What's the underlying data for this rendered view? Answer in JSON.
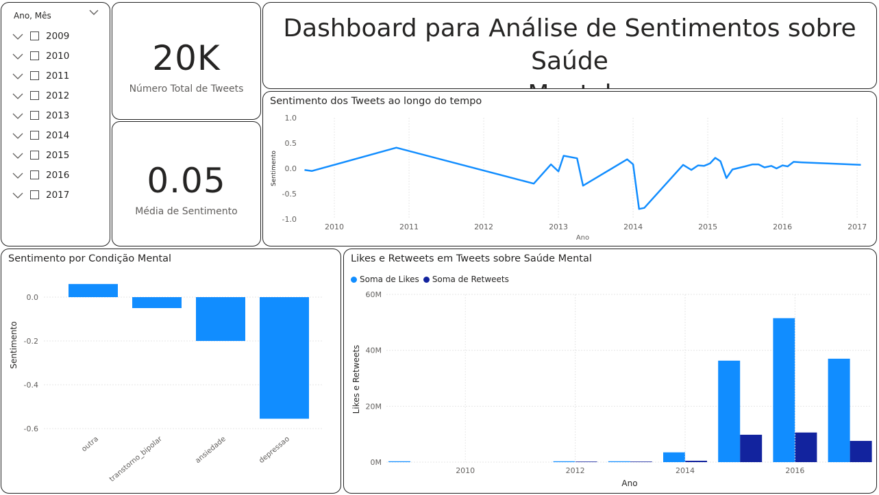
{
  "slicer": {
    "header": "Ano, Mês",
    "items": [
      "2009",
      "2010",
      "2011",
      "2012",
      "2013",
      "2014",
      "2015",
      "2016",
      "2017"
    ]
  },
  "kpis": {
    "total_tweets": {
      "value": "20K",
      "label": "Número Total de Tweets"
    },
    "avg_sentiment": {
      "value": "0.05",
      "label": "Média de Sentimento"
    }
  },
  "dashboard_title": {
    "line1": "Dashboard para Análise de Sentimentos sobre Saúde",
    "line2": "Mental"
  },
  "colors": {
    "primary": "#118DFF",
    "secondary": "#12239E",
    "border": "#1f1f1f"
  },
  "chart_data": [
    {
      "type": "line",
      "title": "Sentimento dos Tweets ao longo do tempo",
      "xlabel": "Ano",
      "ylabel": "Sentimento",
      "ylim": [
        -1.0,
        1.0
      ],
      "yticks": [
        "1.0",
        "0.5",
        "0.0",
        "-0.5",
        "-1.0"
      ],
      "xticks": [
        "2010",
        "2011",
        "2012",
        "2013",
        "2014",
        "2015",
        "2016",
        "2017"
      ],
      "xlim": [
        2009.55,
        2017.1
      ],
      "x": [
        2009.6,
        2009.7,
        2010.83,
        2012.67,
        2012.9,
        2013.0,
        2013.07,
        2013.25,
        2013.33,
        2013.92,
        2014.0,
        2014.08,
        2014.15,
        2014.67,
        2014.78,
        2014.87,
        2014.95,
        2015.03,
        2015.1,
        2015.17,
        2015.25,
        2015.33,
        2015.5,
        2015.6,
        2015.68,
        2015.76,
        2015.85,
        2015.92,
        2016.0,
        2016.07,
        2016.15,
        2016.25,
        2017.05
      ],
      "y": [
        -0.03,
        -0.05,
        0.41,
        -0.3,
        0.08,
        -0.06,
        0.25,
        0.2,
        -0.34,
        0.18,
        0.08,
        -0.8,
        -0.78,
        0.07,
        -0.03,
        0.06,
        0.05,
        0.1,
        0.21,
        0.14,
        -0.19,
        -0.02,
        0.04,
        0.08,
        0.08,
        0.02,
        0.05,
        0.0,
        0.06,
        0.04,
        0.13,
        0.12,
        0.07
      ]
    },
    {
      "type": "bar",
      "title": "Sentimento por Condição Mental",
      "ylabel": "Sentimento",
      "ylim": [
        -0.6,
        0.0
      ],
      "yticks": [
        "0.0",
        "-0.2",
        "-0.4",
        "-0.6"
      ],
      "categories": [
        "outra",
        "transtorno_bipolar",
        "ansiedade",
        "depressao"
      ],
      "values": [
        0.06,
        -0.05,
        -0.2,
        -0.555
      ]
    },
    {
      "type": "bar",
      "title": "Likes e Retweets em Tweets sobre Saúde Mental",
      "xlabel": "Ano",
      "ylabel": "Likes e Retweets",
      "ylim": [
        0,
        60
      ],
      "yticks": [
        "60M",
        "40M",
        "20M",
        "0M"
      ],
      "xticks": [
        "2010",
        "2012",
        "2014",
        "2016"
      ],
      "categories": [
        "2009",
        "2010",
        "2011",
        "2012",
        "2013",
        "2014",
        "2015",
        "2016",
        "2017"
      ],
      "series": [
        {
          "name": "Soma de Likes",
          "values": [
            0.3,
            0,
            0,
            0.3,
            0.3,
            3.5,
            36.3,
            51.5,
            37.0
          ]
        },
        {
          "name": "Soma de Retweets",
          "values": [
            0,
            0,
            0,
            0.2,
            0.2,
            0.5,
            9.8,
            10.6,
            7.6
          ]
        }
      ]
    }
  ]
}
